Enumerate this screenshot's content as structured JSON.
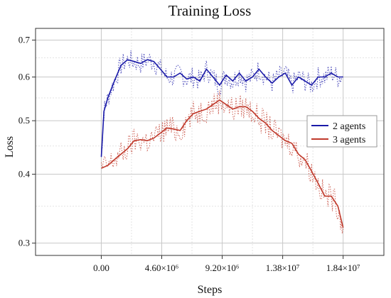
{
  "chart_data": {
    "type": "line",
    "title": "Training Loss",
    "xlabel": "Steps",
    "ylabel": "Loss",
    "y_scale": "log",
    "xlim": [
      -5000000,
      21500000
    ],
    "ylim": [
      0.285,
      0.735
    ],
    "x_ticks": [
      0,
      4600000,
      9200000,
      13800000,
      18400000
    ],
    "x_tick_labels": [
      "0.00",
      "4.60×10⁶",
      "9.20×10⁶",
      "1.38×10⁷",
      "1.84×10⁷"
    ],
    "y_ticks": [
      0.3,
      0.4,
      0.5,
      0.6,
      0.7
    ],
    "y_tick_labels": [
      "0.3",
      "0.4",
      "0.5",
      "0.6",
      "0.7"
    ],
    "grid": true,
    "legend_position": "right",
    "series": [
      {
        "name": "2 agents",
        "color": "#1a1aa8",
        "x": [
          0,
          200000,
          500000,
          1000000,
          1500000,
          2000000,
          2500000,
          3000000,
          3500000,
          4000000,
          4500000,
          5000000,
          5500000,
          6000000,
          6500000,
          7000000,
          7500000,
          8000000,
          8500000,
          9000000,
          9500000,
          10000000,
          10500000,
          11000000,
          11500000,
          12000000,
          12500000,
          13000000,
          13500000,
          14000000,
          14500000,
          15000000,
          15500000,
          16000000,
          16500000,
          17000000,
          17500000,
          18000000,
          18400000
        ],
        "values": [
          0.43,
          0.52,
          0.55,
          0.59,
          0.63,
          0.645,
          0.64,
          0.635,
          0.645,
          0.64,
          0.62,
          0.6,
          0.6,
          0.61,
          0.595,
          0.6,
          0.59,
          0.62,
          0.6,
          0.58,
          0.605,
          0.59,
          0.61,
          0.59,
          0.6,
          0.62,
          0.6,
          0.585,
          0.6,
          0.61,
          0.58,
          0.6,
          0.59,
          0.58,
          0.6,
          0.6,
          0.61,
          0.6,
          0.6
        ]
      },
      {
        "name": "3 agents",
        "color": "#c0392b",
        "x": [
          0,
          500000,
          1000000,
          1500000,
          2000000,
          2500000,
          3000000,
          3500000,
          4000000,
          4500000,
          5000000,
          5500000,
          6000000,
          6500000,
          7000000,
          7500000,
          8000000,
          8500000,
          9000000,
          9500000,
          10000000,
          10500000,
          11000000,
          11500000,
          12000000,
          12500000,
          13000000,
          13500000,
          14000000,
          14500000,
          15000000,
          15500000,
          16000000,
          16500000,
          17000000,
          17500000,
          18000000,
          18400000
        ],
        "values": [
          0.41,
          0.415,
          0.425,
          0.435,
          0.445,
          0.46,
          0.462,
          0.46,
          0.465,
          0.475,
          0.485,
          0.483,
          0.48,
          0.5,
          0.515,
          0.52,
          0.525,
          0.535,
          0.545,
          0.535,
          0.525,
          0.53,
          0.53,
          0.52,
          0.505,
          0.495,
          0.48,
          0.47,
          0.46,
          0.455,
          0.435,
          0.425,
          0.405,
          0.385,
          0.365,
          0.365,
          0.35,
          0.32
        ]
      }
    ]
  }
}
